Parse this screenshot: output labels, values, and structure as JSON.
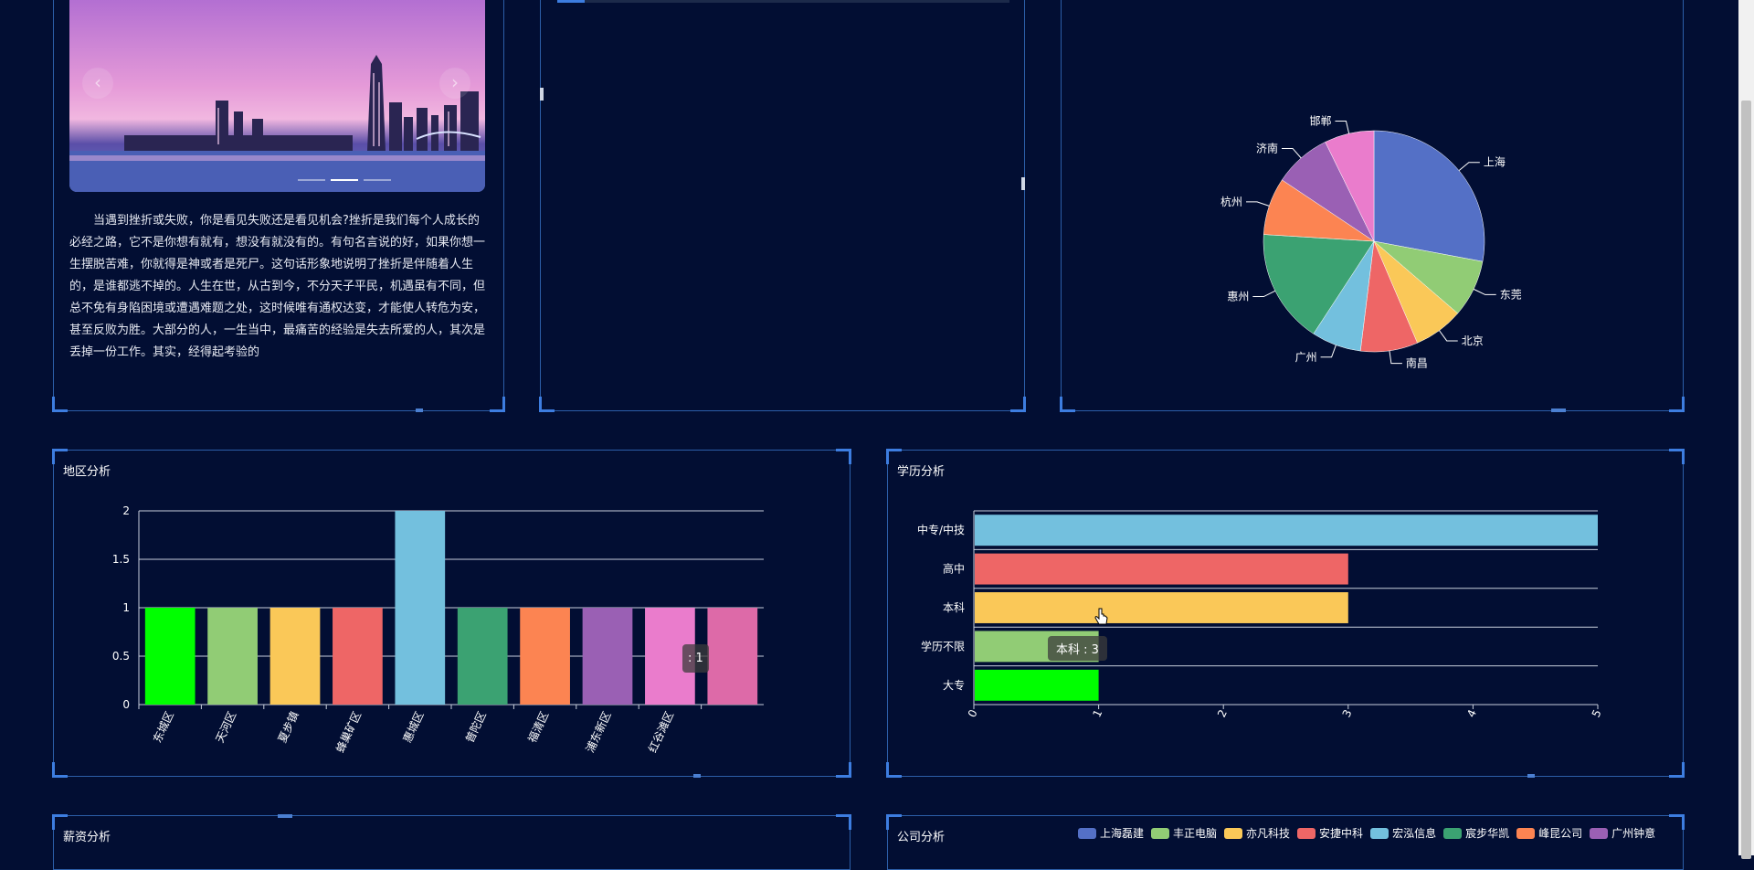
{
  "article": {
    "text": "当遇到挫折或失败，你是看见失败还是看见机会?挫折是我们每个人成长的必经之路，它不是你想有就有，想没有就没有的。有句名言说的好，如果你想一生摆脱苦难，你就得是神或者是死尸。这句话形象地说明了挫折是伴随着人生的，是谁都逃不掉的。人生在世，从古到今，不分天子平民，机遇虽有不同，但总不免有身陷困境或遭遇难题之处，这时候唯有通权达变，才能使人转危为安，甚至反败为胜。大部分的人，一生当中，最痛苦的经验是失去所爱的人，其次是丢掉一份工作。其实，经得起考验的"
  },
  "carousel": {
    "prev_icon": "‹",
    "next_icon": "›",
    "slides": 3,
    "active_slide": 2
  },
  "panels": {
    "region_title": "地区分析",
    "education_title": "学历分析",
    "salary_title": "薪资分析",
    "company_title": "公司分析"
  },
  "chart_data": [
    {
      "type": "pie",
      "title": "",
      "labels": [
        "上海",
        "东莞",
        "北京",
        "南昌",
        "广州",
        "惠州",
        "杭州",
        "济南",
        "邯郸"
      ],
      "values": [
        5,
        1.5,
        1.3,
        1.5,
        1.3,
        3,
        1.5,
        1.5,
        1.3
      ],
      "colors": [
        "#5470c6",
        "#91cc75",
        "#fac858",
        "#ee6666",
        "#73c0de",
        "#3ba272",
        "#fc8452",
        "#9a60b4",
        "#ea7ccc"
      ]
    },
    {
      "type": "bar",
      "title": "地区分析",
      "categories": [
        "东城区",
        "天河区",
        "夏步镇",
        "蜂巢矿区",
        "惠城区",
        "普陀区",
        "福清区",
        "浦东新区",
        "红谷滩区",
        ""
      ],
      "values": [
        1,
        1,
        1,
        1,
        2,
        1,
        1,
        1,
        1,
        1
      ],
      "colors": [
        "#00ff00",
        "#91cc75",
        "#fac858",
        "#ee6666",
        "#73c0de",
        "#3ba272",
        "#fc8452",
        "#9a60b4",
        "#ea7ccc",
        "#dd6aa8"
      ],
      "yticks": [
        "0",
        "0.5",
        "1",
        "1.5",
        "2"
      ],
      "ylim": [
        0,
        2
      ],
      "tooltip": ": 1"
    },
    {
      "type": "bar",
      "orientation": "horizontal",
      "title": "学历分析",
      "categories": [
        "中专/中技",
        "高中",
        "本科",
        "学历不限",
        "大专"
      ],
      "values": [
        5,
        3,
        3,
        1,
        1
      ],
      "colors": [
        "#73c0de",
        "#ee6666",
        "#fac858",
        "#91cc75",
        "#00ff00"
      ],
      "xticks": [
        "0",
        "1",
        "2",
        "3",
        "4",
        "5"
      ],
      "xlim": [
        0,
        5
      ],
      "tooltip": "本科 : 3"
    },
    {
      "type": "legend",
      "title": "公司分析",
      "legend": [
        "上海磊建",
        "丰正电脑",
        "亦凡科技",
        "安捷中科",
        "宏泓信息",
        "宸步华凯",
        "峰昆公司",
        "广州钟意"
      ],
      "colors": [
        "#5470c6",
        "#91cc75",
        "#fac858",
        "#ee6666",
        "#73c0de",
        "#3ba272",
        "#fc8452",
        "#9a60b4"
      ]
    }
  ]
}
